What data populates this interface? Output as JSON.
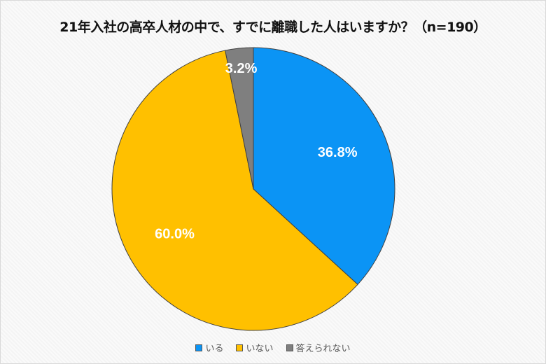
{
  "chart_data": {
    "type": "pie",
    "title": "21年入社の高卒人材の中で、すでに離職した人はいますか？（n=190）",
    "start_angle": "top",
    "direction": "clockwise",
    "legend_position": "bottom",
    "slices": [
      {
        "name": "いる",
        "value": 36.8,
        "label": "36.8%",
        "color": "#0B94F5"
      },
      {
        "name": "いない",
        "value": 60.0,
        "label": "60.0%",
        "color": "#FFC000"
      },
      {
        "name": "答えられない",
        "value": 3.2,
        "label": "3.2%",
        "color": "#7F7F7F"
      }
    ]
  }
}
